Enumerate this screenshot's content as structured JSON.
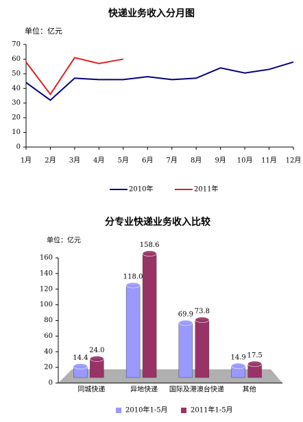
{
  "chart_data": [
    {
      "type": "line",
      "title": "快递业务收入分月图",
      "ylabel": "单位：亿元",
      "categories": [
        "1月",
        "2月",
        "3月",
        "4月",
        "5月",
        "6月",
        "7月",
        "8月",
        "9月",
        "10月",
        "11月",
        "12月"
      ],
      "series": [
        {
          "name": "2010年",
          "color": "#000080",
          "values": [
            44,
            32,
            47,
            46,
            46,
            48,
            46,
            47,
            54,
            50.5,
            53,
            58
          ]
        },
        {
          "name": "2011年",
          "color": "#e02020",
          "values": [
            58,
            36,
            61,
            57,
            60,
            null,
            null,
            null,
            null,
            null,
            null,
            null
          ]
        }
      ],
      "ylim": [
        0,
        70
      ],
      "yticks": [
        0,
        10,
        20,
        30,
        40,
        50,
        60,
        70
      ],
      "legend": "bottom"
    },
    {
      "type": "bar",
      "title": "分专业快递业务收入比较",
      "ylabel": "单位：亿元",
      "categories": [
        "同城快递",
        "异地快递",
        "国际及港澳台快递",
        "其他"
      ],
      "series": [
        {
          "name": "2010年1-5月",
          "color": "#9999ff",
          "values": [
            14.4,
            118.0,
            69.9,
            14.9
          ],
          "value_labels": [
            "14.4",
            "118.0",
            "69.9",
            "14.9"
          ]
        },
        {
          "name": "2011年1-5月",
          "color": "#993366",
          "values": [
            24.0,
            158.6,
            73.8,
            17.5
          ],
          "value_labels": [
            "24.0",
            "158.6",
            "73.8",
            "17.5"
          ]
        }
      ],
      "ylim": [
        0,
        160
      ],
      "yticks": [
        0,
        20,
        40,
        60,
        80,
        100,
        120,
        140,
        160
      ],
      "legend": "bottom"
    }
  ]
}
